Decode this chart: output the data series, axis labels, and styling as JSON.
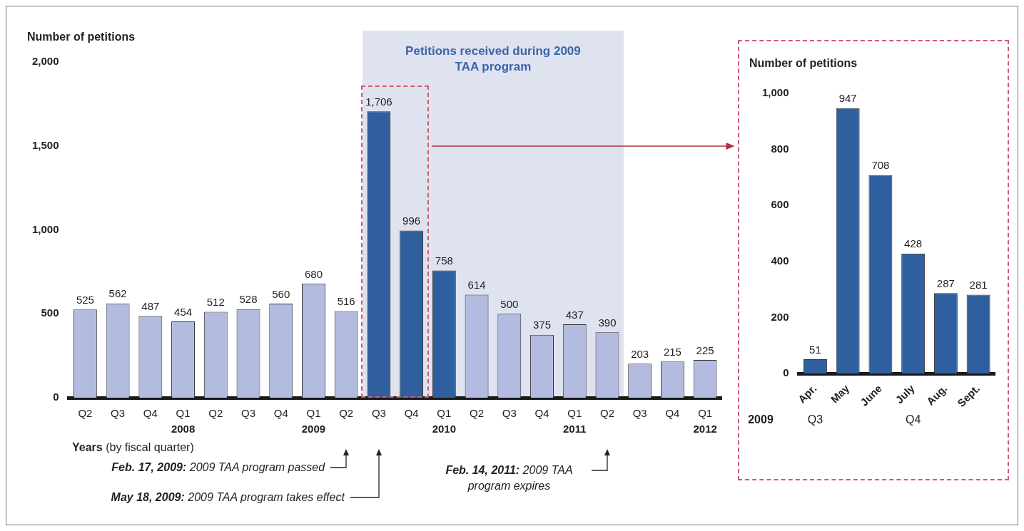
{
  "chart_data": [
    {
      "type": "bar",
      "ylabel": "Number of petitions",
      "xlabel": "Years (by fiscal quarter)",
      "categories": [
        "Q2",
        "Q3",
        "Q4",
        "Q1\n2008",
        "Q2",
        "Q3",
        "Q4",
        "Q1\n2009",
        "Q2",
        "Q3",
        "Q4",
        "Q1\n2010",
        "Q2",
        "Q3",
        "Q4",
        "Q1\n2011",
        "Q2",
        "Q3",
        "Q4",
        "Q1\n2012"
      ],
      "values": [
        525,
        562,
        487,
        454,
        512,
        528,
        560,
        680,
        516,
        1706,
        996,
        758,
        614,
        500,
        375,
        437,
        390,
        203,
        215,
        225
      ],
      "colors": [
        "#b3bbe0",
        "#b3bbe0",
        "#b3bbe0",
        "#b3bbe0",
        "#b3bbe0",
        "#b3bbe0",
        "#b3bbe0",
        "#b3bbe0",
        "#b3bbe0",
        "#2f5f9e",
        "#2f5f9e",
        "#2f5f9e",
        "#b3bbe0",
        "#b3bbe0",
        "#b3bbe0",
        "#b3bbe0",
        "#b3bbe0",
        "#b3bbe0",
        "#b3bbe0",
        "#b3bbe0"
      ],
      "value_labels": [
        "525",
        "562",
        "487",
        "454",
        "512",
        "528",
        "560",
        "680",
        "516",
        "1,706",
        "996",
        "758",
        "614",
        "500",
        "375",
        "437",
        "390",
        "203",
        "215",
        "225"
      ],
      "ylim": [
        0,
        2000
      ],
      "yticks": [
        0,
        {
          "value": 500,
          "label": "500"
        },
        {
          "value": 1000,
          "label": "1,000"
        },
        {
          "value": 1500,
          "label": "1,500"
        },
        {
          "value": 2000,
          "label": "2,000"
        }
      ],
      "annotations": [
        "Petitions received during 2009 TAA program",
        "Feb. 17, 2009: 2009 TAA program passed",
        "May 18, 2009: 2009 TAA program takes effect",
        "Feb. 14, 2011: 2009 TAA program expires"
      ]
    },
    {
      "type": "bar",
      "ylabel": "Number of petitions",
      "categories": [
        "Apr.",
        "May",
        "June",
        "July",
        "Aug.",
        "Sept."
      ],
      "values": [
        51,
        947,
        708,
        428,
        287,
        281
      ],
      "color": "#2f5f9e",
      "value_labels": [
        "51",
        "947",
        "708",
        "428",
        "287",
        "281"
      ],
      "ylim": [
        0,
        1000
      ],
      "yticks": [
        0,
        200,
        400,
        600,
        800,
        {
          "value": 1000,
          "label": "1,000"
        }
      ],
      "annotations": [
        "2009",
        "Q3",
        "Q4"
      ]
    }
  ]
}
